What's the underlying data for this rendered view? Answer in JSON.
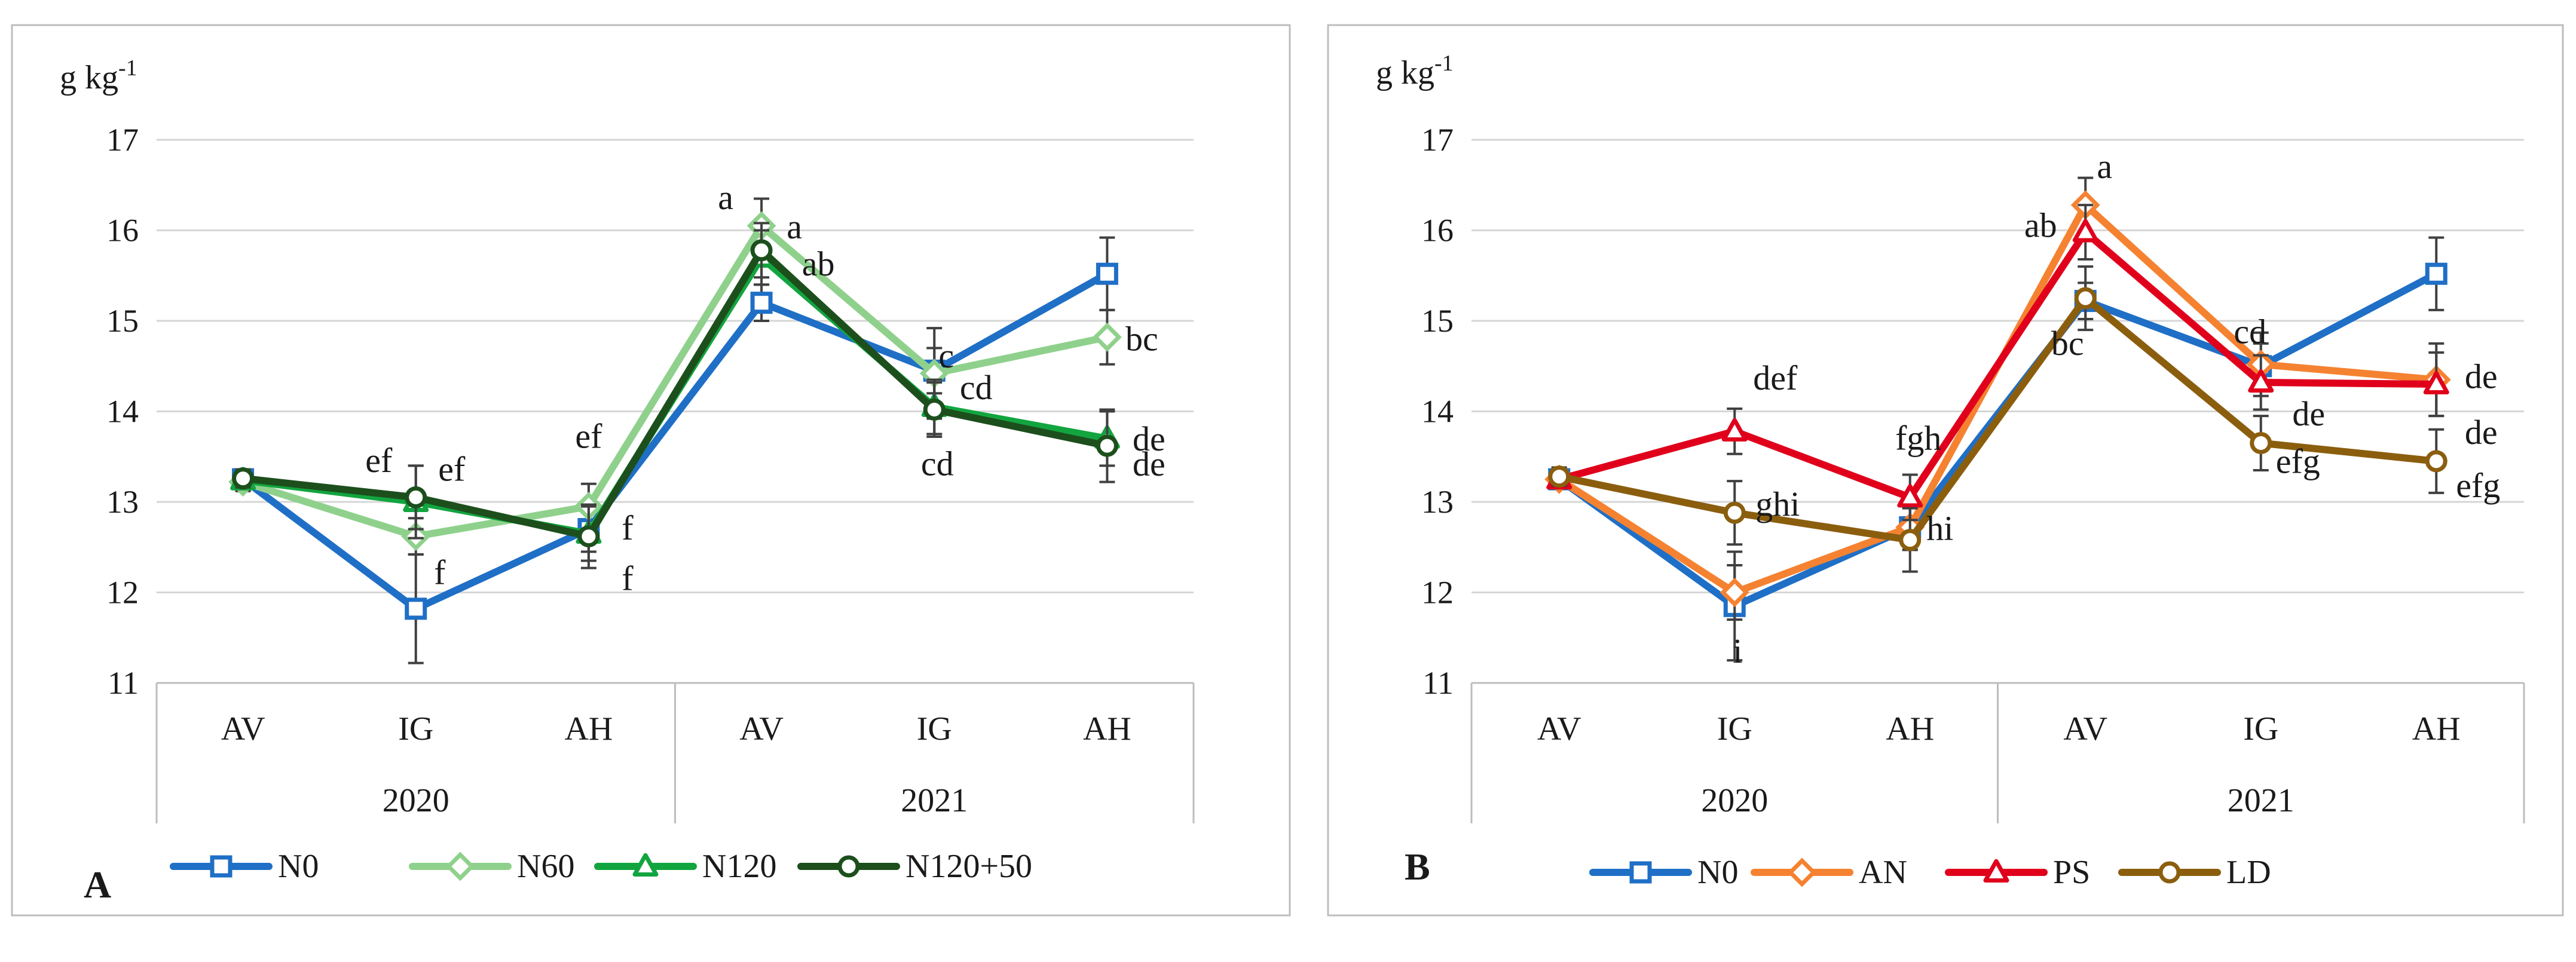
{
  "chart_data": [
    {
      "panel_label": "A",
      "type": "line",
      "ylabel": "g kg",
      "ylabel_superscript": "-1",
      "ylim": [
        11,
        17
      ],
      "yticks": [
        11,
        12,
        13,
        14,
        15,
        16,
        17
      ],
      "y_tick_labels": [
        "11",
        "12",
        "13",
        "14",
        "15",
        "16",
        "17"
      ],
      "grid": true,
      "legend_position": "bottom",
      "x_groups": [
        {
          "label": "2020",
          "categories": [
            "AV",
            "IG",
            "AH"
          ]
        },
        {
          "label": "2021",
          "categories": [
            "AV",
            "IG",
            "AH"
          ]
        }
      ],
      "series": [
        {
          "name": "N0",
          "color": "#1f6fc6",
          "marker": "square",
          "values": [
            13.25,
            11.82,
            12.7,
            15.2,
            14.45,
            15.52
          ],
          "errors": [
            0.1,
            0.6,
            0.25,
            0.2,
            0.25,
            0.4
          ],
          "labels": [
            "",
            "",
            "",
            "",
            "",
            ""
          ]
        },
        {
          "name": "N60",
          "color": "#8fd18c",
          "marker": "diamond",
          "values": [
            13.22,
            12.62,
            12.95,
            16.05,
            14.42,
            14.82
          ],
          "errors": [
            0.1,
            0.2,
            0.25,
            0.3,
            0.5,
            0.3
          ],
          "labels": [
            "",
            "f",
            "ef",
            "a",
            "c",
            "bc"
          ]
        },
        {
          "name": "N120",
          "color": "#12a53f",
          "marker": "triangle",
          "values": [
            13.24,
            13.0,
            12.65,
            15.7,
            14.05,
            13.7
          ],
          "errors": [
            0.1,
            0.4,
            0.3,
            0.3,
            0.3,
            0.3
          ],
          "labels": [
            "",
            "ef",
            "f",
            "a",
            "cd",
            "de"
          ]
        },
        {
          "name": "N120+50",
          "color": "#1d4f1d",
          "marker": "circle",
          "values": [
            13.26,
            13.05,
            12.62,
            15.78,
            14.02,
            13.62
          ],
          "errors": [
            0.1,
            0.35,
            0.35,
            0.3,
            0.3,
            0.4
          ],
          "labels": [
            "",
            "ef",
            "f",
            "ab",
            "cd",
            "de"
          ]
        }
      ]
    },
    {
      "panel_label": "B",
      "type": "line",
      "ylabel": "g kg",
      "ylabel_superscript": "-1",
      "ylim": [
        11,
        17
      ],
      "yticks": [
        11,
        12,
        13,
        14,
        15,
        16,
        17
      ],
      "y_tick_labels": [
        "11",
        "12",
        "13",
        "14",
        "15",
        "16",
        "17"
      ],
      "grid": true,
      "legend_position": "bottom",
      "x_groups": [
        {
          "label": "2020",
          "categories": [
            "AV",
            "IG",
            "AH"
          ]
        },
        {
          "label": "2021",
          "categories": [
            "AV",
            "IG",
            "AH"
          ]
        }
      ],
      "series": [
        {
          "name": "N0",
          "color": "#1f6fc6",
          "marker": "square",
          "values": [
            13.25,
            11.85,
            12.72,
            15.22,
            14.5,
            15.52
          ],
          "errors": [
            0.1,
            0.6,
            0.25,
            0.2,
            0.25,
            0.4
          ],
          "labels": [
            "",
            "i",
            "",
            "",
            "",
            ""
          ]
        },
        {
          "name": "AN",
          "color": "#f58231",
          "marker": "diamond",
          "values": [
            13.25,
            12.0,
            12.72,
            16.28,
            14.52,
            14.35
          ],
          "errors": [
            0.1,
            0.3,
            0.25,
            0.3,
            0.35,
            0.4
          ],
          "labels": [
            "",
            "",
            "",
            "a",
            "cd",
            "de"
          ]
        },
        {
          "name": "PS",
          "color": "#e0001b",
          "marker": "triangle",
          "values": [
            13.25,
            13.78,
            13.05,
            15.98,
            14.32,
            14.3
          ],
          "errors": [
            0.1,
            0.25,
            0.25,
            0.3,
            0.3,
            0.35
          ],
          "labels": [
            "",
            "def",
            "fgh",
            "ab",
            "de",
            "de"
          ]
        },
        {
          "name": "LD",
          "color": "#8b5e0e",
          "marker": "circle",
          "values": [
            13.28,
            12.88,
            12.58,
            15.25,
            13.65,
            13.45
          ],
          "errors": [
            0.1,
            0.35,
            0.35,
            0.35,
            0.3,
            0.35
          ],
          "labels": [
            "",
            "ghi",
            "hi",
            "bc",
            "efg",
            "efg"
          ]
        }
      ]
    }
  ]
}
